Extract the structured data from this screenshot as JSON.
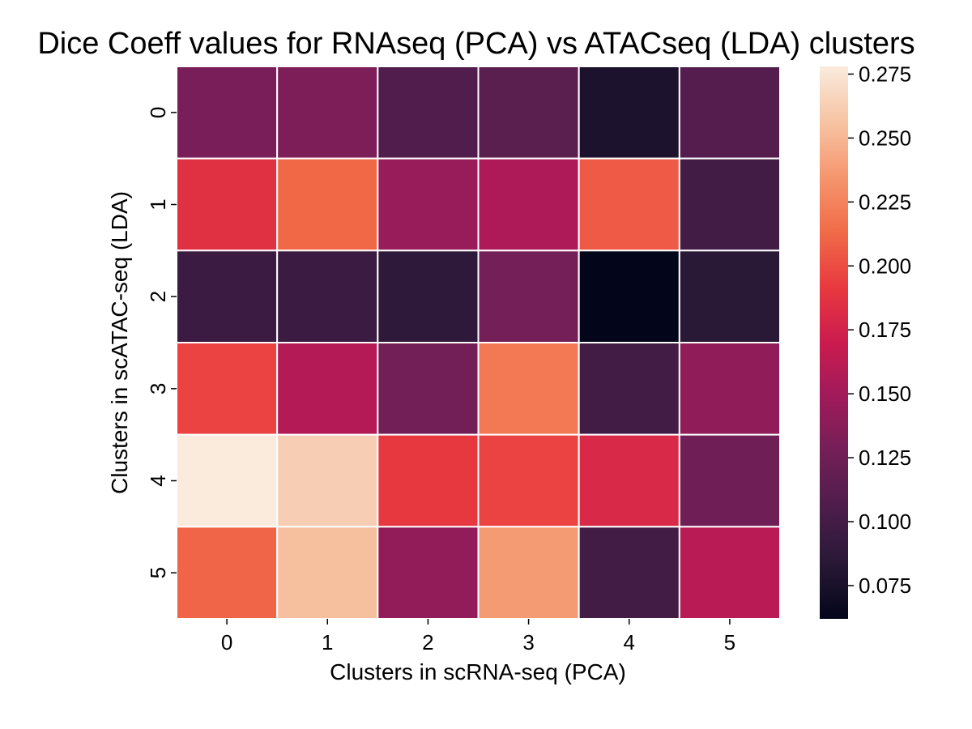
{
  "chart_data": {
    "type": "heatmap",
    "title": "Dice Coeff values for RNAseq (PCA) vs ATACseq (LDA) clusters",
    "xlabel": "Clusters in scRNA-seq (PCA)",
    "ylabel": "Clusters in scATAC-seq (LDA)",
    "x_categories": [
      "0",
      "1",
      "2",
      "3",
      "4",
      "5"
    ],
    "y_categories": [
      "0",
      "1",
      "2",
      "3",
      "4",
      "5"
    ],
    "values": [
      [
        0.13,
        0.132,
        0.108,
        0.113,
        0.077,
        0.11
      ],
      [
        0.186,
        0.212,
        0.145,
        0.156,
        0.206,
        0.1
      ],
      [
        0.095,
        0.095,
        0.088,
        0.128,
        0.062,
        0.085
      ],
      [
        0.196,
        0.158,
        0.127,
        0.22,
        0.099,
        0.141
      ],
      [
        0.278,
        0.262,
        0.191,
        0.196,
        0.18,
        0.125
      ],
      [
        0.21,
        0.254,
        0.142,
        0.237,
        0.1,
        0.161
      ]
    ],
    "colorbar": {
      "vmin": 0.062,
      "vmax": 0.278,
      "ticks": [
        "0.075",
        "0.100",
        "0.125",
        "0.150",
        "0.175",
        "0.200",
        "0.225",
        "0.250",
        "0.275"
      ]
    },
    "colormap": "rocket",
    "gridlines": "white",
    "legend": "colorbar-right"
  }
}
